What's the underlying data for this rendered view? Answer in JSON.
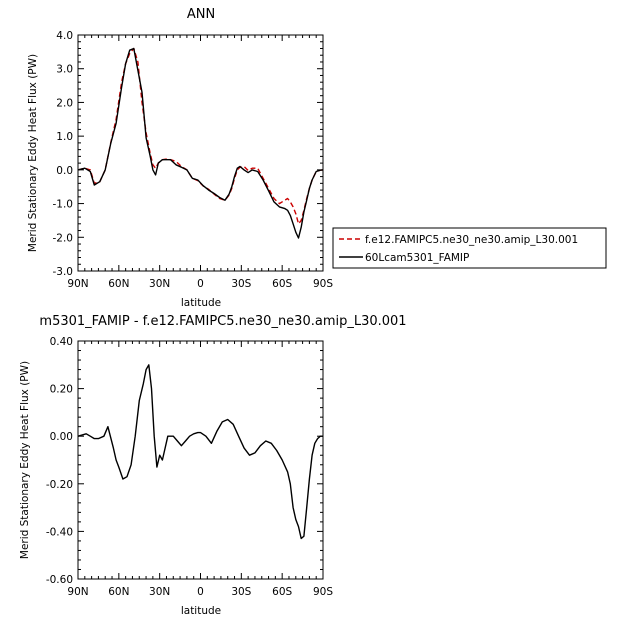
{
  "chart_data": [
    {
      "type": "line",
      "title": "ANN",
      "xlabel": "latitude",
      "ylabel": "Merid Stationary Eddy Heat Flux (PW)",
      "xlim": [
        90,
        -90
      ],
      "ylim": [
        -3.0,
        4.0
      ],
      "x_ticks": [
        90,
        60,
        30,
        0,
        -30,
        -60,
        -90
      ],
      "x_tick_labels": [
        "90N",
        "60N",
        "30N",
        "0",
        "30S",
        "60S",
        "90S"
      ],
      "y_ticks": [
        4.0,
        3.0,
        2.0,
        1.0,
        0.0,
        -1.0,
        -2.0,
        -3.0
      ],
      "y_tick_labels": [
        "4.0",
        "3.0",
        "2.0",
        "1.0",
        "0.0",
        "-1.0",
        "-2.0",
        "-3.0"
      ],
      "legend_position": "right",
      "series": [
        {
          "name": "f.e12.FAMIPC5.ne30_ne30.amip_L30.001",
          "color": "#cc0000",
          "dash": true,
          "x": [
            90,
            85,
            81,
            78,
            74,
            70,
            66,
            62,
            58,
            55,
            52,
            49,
            46,
            43,
            40,
            37,
            35,
            33,
            31,
            28,
            25,
            22,
            18,
            14,
            10,
            6,
            2,
            -2,
            -6,
            -10,
            -14,
            -18,
            -21,
            -23,
            -25,
            -27,
            -29,
            -32,
            -35,
            -38,
            -42,
            -46,
            -50,
            -54,
            -58,
            -62,
            -64,
            -66,
            -68,
            -70,
            -72,
            -74,
            -76,
            -78,
            -80,
            -82,
            -85,
            -88,
            -90
          ],
          "y": [
            0.0,
            0.05,
            0.0,
            -0.4,
            -0.35,
            0.0,
            0.8,
            1.5,
            2.6,
            3.15,
            3.45,
            3.6,
            3.2,
            2.0,
            1.1,
            0.5,
            0.15,
            0.05,
            0.2,
            0.3,
            0.32,
            0.3,
            0.25,
            0.1,
            0.0,
            -0.25,
            -0.32,
            -0.48,
            -0.58,
            -0.72,
            -0.85,
            -0.9,
            -0.75,
            -0.55,
            -0.25,
            0.0,
            0.08,
            0.1,
            -0.02,
            0.05,
            0.05,
            -0.25,
            -0.55,
            -0.85,
            -1.0,
            -0.9,
            -0.85,
            -0.95,
            -1.1,
            -1.3,
            -1.6,
            -1.5,
            -1.2,
            -0.85,
            -0.55,
            -0.3,
            -0.05,
            -0.01,
            0.0
          ]
        },
        {
          "name": "60Lcam5301_FAMIP",
          "color": "#000000",
          "dash": false,
          "x": [
            90,
            85,
            81,
            78,
            74,
            70,
            66,
            62,
            58,
            55,
            52,
            49,
            46,
            43,
            40,
            37,
            35,
            33,
            31,
            28,
            25,
            22,
            18,
            14,
            10,
            6,
            2,
            -2,
            -6,
            -10,
            -14,
            -18,
            -21,
            -23,
            -25,
            -27,
            -29,
            -32,
            -35,
            -38,
            -42,
            -46,
            -50,
            -54,
            -58,
            -62,
            -64,
            -66,
            -68,
            -70,
            -72,
            -74,
            -76,
            -78,
            -80,
            -82,
            -85,
            -88,
            -90
          ],
          "y": [
            0.0,
            0.05,
            -0.05,
            -0.45,
            -0.35,
            0.0,
            0.78,
            1.38,
            2.45,
            3.15,
            3.55,
            3.6,
            2.95,
            2.3,
            0.95,
            0.42,
            0.0,
            -0.15,
            0.2,
            0.3,
            0.3,
            0.3,
            0.15,
            0.08,
            0.0,
            -0.25,
            -0.3,
            -0.47,
            -0.6,
            -0.7,
            -0.82,
            -0.9,
            -0.72,
            -0.5,
            -0.2,
            0.05,
            0.1,
            0.0,
            -0.08,
            0.0,
            -0.05,
            -0.3,
            -0.62,
            -0.95,
            -1.1,
            -1.15,
            -1.2,
            -1.35,
            -1.6,
            -1.85,
            -2.02,
            -1.7,
            -1.25,
            -0.9,
            -0.55,
            -0.3,
            -0.05,
            -0.01,
            0.0
          ]
        }
      ]
    },
    {
      "type": "line",
      "title": "m5301_FAMIP - f.e12.FAMIPC5.ne30_ne30.amip_L30.001",
      "xlabel": "latitude",
      "ylabel": "Merid Stationary Eddy Heat Flux (PW)",
      "xlim": [
        90,
        -90
      ],
      "ylim": [
        -0.6,
        0.4
      ],
      "x_ticks": [
        90,
        60,
        30,
        0,
        -30,
        -60,
        -90
      ],
      "x_tick_labels": [
        "90N",
        "60N",
        "30N",
        "0",
        "30S",
        "60S",
        "90S"
      ],
      "y_ticks": [
        0.4,
        0.2,
        0.0,
        -0.2,
        -0.4,
        -0.6
      ],
      "y_tick_labels": [
        "0.40",
        "0.20",
        "0.00",
        "-0.20",
        "-0.40",
        "-0.60"
      ],
      "series": [
        {
          "color": "#000000",
          "x": [
            90,
            84,
            81,
            78,
            75,
            71,
            68,
            64,
            62,
            60,
            57,
            54,
            51,
            48,
            45,
            42,
            40,
            38,
            36,
            34,
            32,
            30,
            28,
            26,
            24,
            22,
            20,
            17,
            14,
            11,
            8,
            5,
            2,
            0,
            -4,
            -8,
            -12,
            -16,
            -20,
            -24,
            -28,
            -32,
            -36,
            -40,
            -44,
            -48,
            -52,
            -56,
            -60,
            -64,
            -66,
            -68,
            -70,
            -72,
            -74,
            -76,
            -78,
            -80,
            -82,
            -84,
            -86,
            -88,
            -90
          ],
          "y": [
            0.0,
            0.01,
            0.0,
            -0.01,
            -0.01,
            0.0,
            0.04,
            -0.05,
            -0.1,
            -0.13,
            -0.18,
            -0.17,
            -0.12,
            0.0,
            0.15,
            0.22,
            0.28,
            0.3,
            0.2,
            0.0,
            -0.13,
            -0.08,
            -0.1,
            -0.05,
            0.0,
            0.0,
            0.0,
            -0.02,
            -0.04,
            -0.02,
            0.0,
            0.01,
            0.015,
            0.015,
            0.0,
            -0.03,
            0.02,
            0.06,
            0.07,
            0.05,
            0.0,
            -0.05,
            -0.08,
            -0.07,
            -0.04,
            -0.02,
            -0.03,
            -0.06,
            -0.1,
            -0.15,
            -0.2,
            -0.3,
            -0.35,
            -0.38,
            -0.43,
            -0.42,
            -0.3,
            -0.18,
            -0.08,
            -0.03,
            -0.01,
            0.0,
            0.0
          ]
        }
      ]
    }
  ]
}
